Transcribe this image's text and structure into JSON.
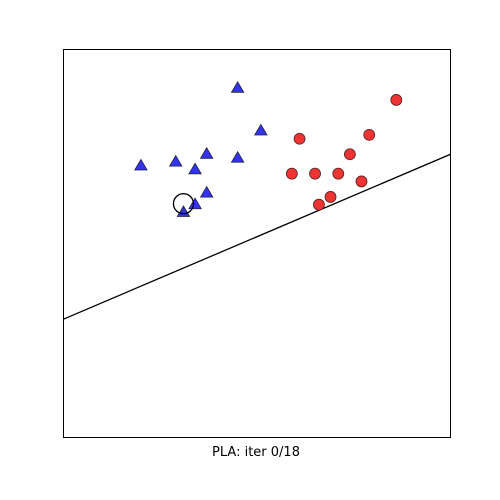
{
  "chart_data": {
    "type": "scatter",
    "caption": "PLA: iter 0/18",
    "xlim": [
      0,
      10
    ],
    "ylim": [
      0,
      10
    ],
    "axis_ticks": false,
    "grid": false,
    "series": [
      {
        "class": "+1",
        "marker": "triangle",
        "color": "#3333ee",
        "points": [
          [
            4.5,
            9.0
          ],
          [
            5.1,
            7.9
          ],
          [
            2.0,
            7.0
          ],
          [
            2.9,
            7.1
          ],
          [
            3.7,
            7.3
          ],
          [
            4.5,
            7.2
          ],
          [
            3.4,
            6.9
          ],
          [
            3.1,
            5.8
          ],
          [
            3.4,
            6.0
          ],
          [
            3.7,
            6.3
          ]
        ]
      },
      {
        "class": "-1",
        "marker": "circle",
        "color": "#ee3333",
        "points": [
          [
            8.6,
            8.7
          ],
          [
            6.1,
            7.7
          ],
          [
            7.9,
            7.8
          ],
          [
            7.4,
            7.3
          ],
          [
            5.9,
            6.8
          ],
          [
            6.5,
            6.8
          ],
          [
            7.1,
            6.8
          ],
          [
            7.7,
            6.6
          ],
          [
            6.6,
            6.0
          ],
          [
            6.9,
            6.2
          ]
        ]
      }
    ],
    "highlighted_point": [
      3.1,
      6.0
    ],
    "boundary_line": {
      "from": [
        0,
        3.05
      ],
      "to": [
        10,
        7.3
      ]
    }
  }
}
